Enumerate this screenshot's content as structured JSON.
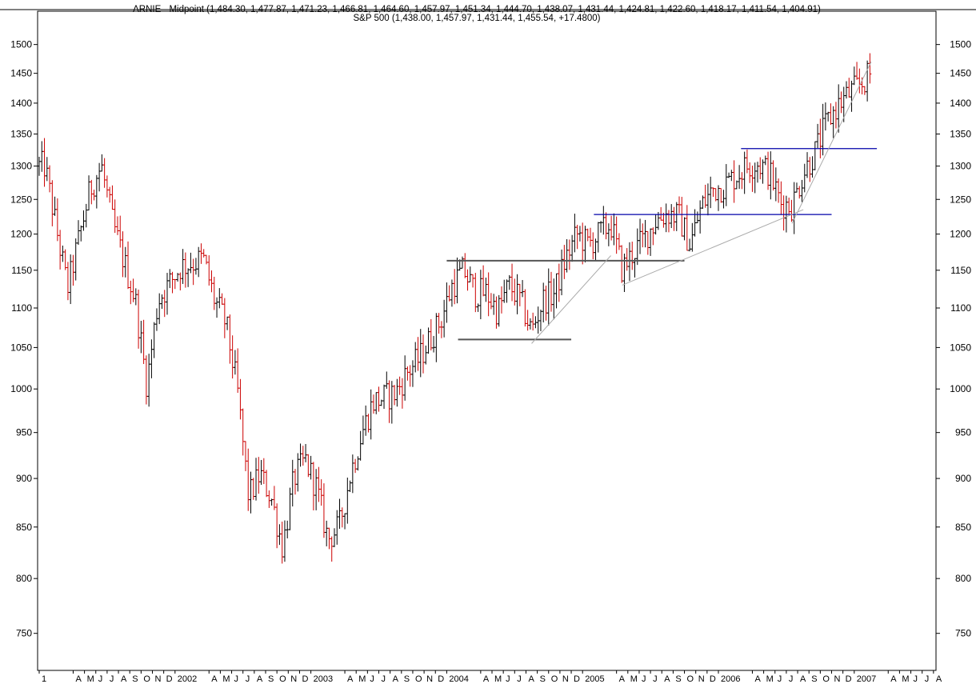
{
  "header": {
    "line1": "ARNIE - Midpoint (1,484.30, 1,477.87, 1,471.23, 1,466.81, 1,464.60, 1,457.97, 1,451.34, 1,444.70, 1,438.07, 1,431.44, 1,424.81, 1,422.60, 1,418.17, 1,411.54, 1,404.91)",
    "line2": "S&P 500 (1,438.00, 1,457.97, 1,431.44, 1,455.54, +17.4800)"
  },
  "colors": {
    "up_bar": "#000000",
    "down_bar": "#cc0000",
    "resistance_black": "#555555",
    "resistance_blue": "#0000aa",
    "trendline": "#aaaaaa",
    "background": "#ffffff",
    "axis": "#000000"
  },
  "chart_data": {
    "type": "ohlc-bar",
    "scale": "log",
    "ylim": [
      718,
      1560
    ],
    "yticks": [
      750,
      800,
      850,
      900,
      950,
      1000,
      1050,
      1100,
      1150,
      1200,
      1250,
      1300,
      1350,
      1400,
      1450,
      1500
    ],
    "x_axis_labels": [
      "1",
      "A",
      "M",
      "J",
      "J",
      "A",
      "S",
      "O",
      "N",
      "D",
      "2002",
      "A",
      "M",
      "J",
      "J",
      "A",
      "S",
      "O",
      "N",
      "D",
      "2003",
      "A",
      "M",
      "J",
      "J",
      "A",
      "S",
      "O",
      "N",
      "D",
      "2004",
      "A",
      "M",
      "J",
      "J",
      "A",
      "S",
      "O",
      "N",
      "D",
      "2005",
      "A",
      "M",
      "J",
      "J",
      "A",
      "S",
      "O",
      "N",
      "D",
      "2006",
      "A",
      "M",
      "J",
      "J",
      "A",
      "S",
      "O",
      "N",
      "D",
      "2007",
      "A",
      "M",
      "J",
      "J",
      "A"
    ],
    "x_axis_months": [
      0,
      3,
      4,
      5,
      6,
      7,
      8,
      9,
      10,
      11,
      12,
      15,
      16,
      17,
      18,
      19,
      20,
      21,
      22,
      23,
      24,
      27,
      28,
      29,
      30,
      31,
      32,
      33,
      34,
      35,
      36,
      39,
      40,
      41,
      42,
      43,
      44,
      45,
      46,
      47,
      48,
      51,
      52,
      53,
      54,
      55,
      56,
      57,
      58,
      59,
      60,
      63,
      64,
      65,
      66,
      67,
      68,
      69,
      70,
      71,
      72,
      75,
      76,
      77,
      78,
      79
    ],
    "x_start": "2001-01",
    "key_points": [
      {
        "date": "2001-01",
        "value": 1300
      },
      {
        "date": "2001-03",
        "value": 1125
      },
      {
        "date": "2001-05",
        "value": 1265
      },
      {
        "date": "2001-06",
        "value": 1300
      },
      {
        "date": "2001-07",
        "value": 1215
      },
      {
        "date": "2001-09",
        "value": 1110
      },
      {
        "date": "2001-10",
        "value": 1005
      },
      {
        "date": "2001-11",
        "value": 1110
      },
      {
        "date": "2002-01",
        "value": 1155
      },
      {
        "date": "2002-03",
        "value": 1165
      },
      {
        "date": "2002-04",
        "value": 1110
      },
      {
        "date": "2002-05",
        "value": 1080
      },
      {
        "date": "2002-06",
        "value": 1000
      },
      {
        "date": "2002-07",
        "value": 880
      },
      {
        "date": "2002-08",
        "value": 905
      },
      {
        "date": "2002-09",
        "value": 880
      },
      {
        "date": "2002-10",
        "value": 830
      },
      {
        "date": "2002-11",
        "value": 900
      },
      {
        "date": "2002-12",
        "value": 920
      },
      {
        "date": "2003-01",
        "value": 890
      },
      {
        "date": "2003-02",
        "value": 838
      },
      {
        "date": "2003-03",
        "value": 850
      },
      {
        "date": "2003-04",
        "value": 905
      },
      {
        "date": "2003-05",
        "value": 950
      },
      {
        "date": "2003-06",
        "value": 985
      },
      {
        "date": "2003-07",
        "value": 990
      },
      {
        "date": "2003-08",
        "value": 995
      },
      {
        "date": "2003-09",
        "value": 1020
      },
      {
        "date": "2003-10",
        "value": 1035
      },
      {
        "date": "2003-11",
        "value": 1060
      },
      {
        "date": "2003-12",
        "value": 1085
      },
      {
        "date": "2004-01",
        "value": 1130
      },
      {
        "date": "2004-02",
        "value": 1150
      },
      {
        "date": "2004-03",
        "value": 1120
      },
      {
        "date": "2004-04",
        "value": 1120
      },
      {
        "date": "2004-05",
        "value": 1095
      },
      {
        "date": "2004-06",
        "value": 1130
      },
      {
        "date": "2004-07",
        "value": 1110
      },
      {
        "date": "2004-08",
        "value": 1070
      },
      {
        "date": "2004-09",
        "value": 1110
      },
      {
        "date": "2004-10",
        "value": 1120
      },
      {
        "date": "2004-11",
        "value": 1165
      },
      {
        "date": "2004-12",
        "value": 1200
      },
      {
        "date": "2005-01",
        "value": 1185
      },
      {
        "date": "2005-02",
        "value": 1200
      },
      {
        "date": "2005-03",
        "value": 1215
      },
      {
        "date": "2005-04",
        "value": 1150
      },
      {
        "date": "2005-05",
        "value": 1175
      },
      {
        "date": "2005-06",
        "value": 1195
      },
      {
        "date": "2005-07",
        "value": 1220
      },
      {
        "date": "2005-08",
        "value": 1230
      },
      {
        "date": "2005-09",
        "value": 1225
      },
      {
        "date": "2005-10",
        "value": 1185
      },
      {
        "date": "2005-11",
        "value": 1240
      },
      {
        "date": "2005-12",
        "value": 1265
      },
      {
        "date": "2006-01",
        "value": 1270
      },
      {
        "date": "2006-02",
        "value": 1285
      },
      {
        "date": "2006-03",
        "value": 1300
      },
      {
        "date": "2006-04",
        "value": 1305
      },
      {
        "date": "2006-05",
        "value": 1290
      },
      {
        "date": "2006-06",
        "value": 1245
      },
      {
        "date": "2006-07",
        "value": 1240
      },
      {
        "date": "2006-08",
        "value": 1290
      },
      {
        "date": "2006-09",
        "value": 1320
      },
      {
        "date": "2006-10",
        "value": 1365
      },
      {
        "date": "2006-11",
        "value": 1395
      },
      {
        "date": "2006-12",
        "value": 1415
      },
      {
        "date": "2007-01",
        "value": 1430
      },
      {
        "date": "2007-02",
        "value": 1450
      }
    ],
    "annotations": [
      {
        "type": "horizontal",
        "color": "resistance_black",
        "value": 1163,
        "from": "2004-01",
        "to": "2005-10"
      },
      {
        "type": "horizontal",
        "color": "resistance_black",
        "value": 1060,
        "from": "2004-02",
        "to": "2004-12"
      },
      {
        "type": "horizontal",
        "color": "resistance_blue",
        "value": 1228,
        "from": "2005-02",
        "to": "2006-11"
      },
      {
        "type": "horizontal",
        "color": "resistance_blue",
        "value": 1327,
        "from": "2006-03",
        "to": "2007-03"
      },
      {
        "type": "trend",
        "color": "trendline",
        "from": [
          "2004-08",
          1055
        ],
        "to": [
          "2005-03",
          1170
        ]
      },
      {
        "type": "trend",
        "color": "trendline",
        "from": [
          "2005-04",
          1130
        ],
        "to": [
          "2006-08",
          1235
        ]
      },
      {
        "type": "trend",
        "color": "trendline",
        "from": [
          "2006-07",
          1215
        ],
        "to": [
          "2007-02",
          1470
        ]
      }
    ]
  }
}
